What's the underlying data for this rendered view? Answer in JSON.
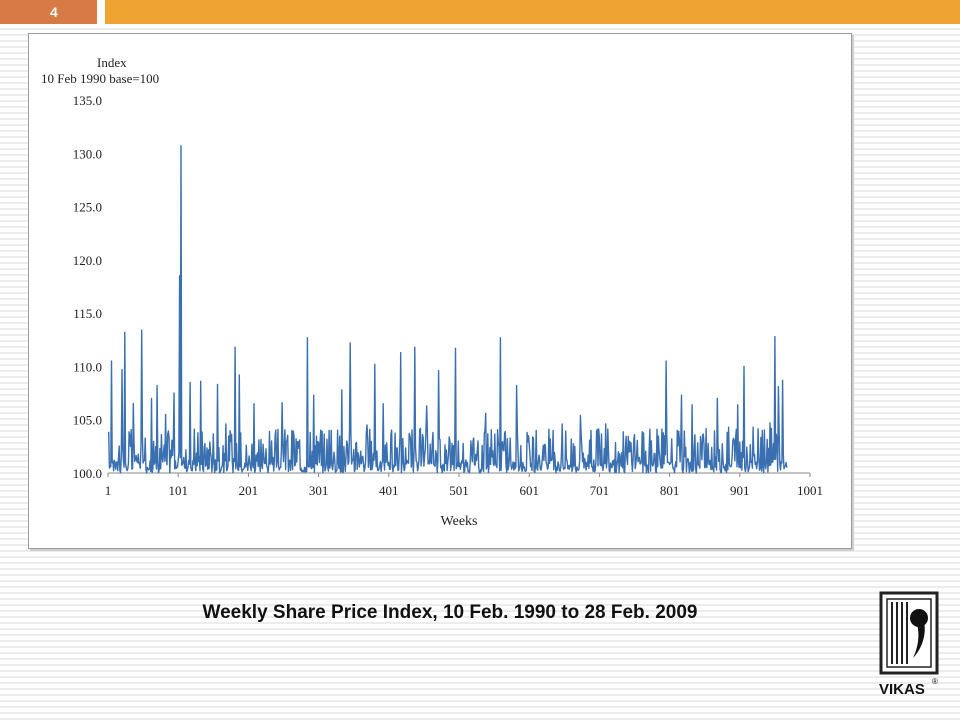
{
  "slide": {
    "number": "4"
  },
  "caption": "Weekly Share Price Index, 10 Feb. 1990 to 28 Feb. 2009",
  "logo": {
    "text": "VIKAS",
    "mark": "®",
    "icon": "vikas-book-logo-icon"
  },
  "colors": {
    "topbar_number": "#d77a46",
    "topbar": "#eea333",
    "series": "#3a6fb0"
  },
  "chart_data": {
    "type": "line",
    "title": "",
    "ylabel_line1": "Index",
    "ylabel_line2": "10 Feb 1990 base=100",
    "xlabel": "Weeks",
    "ylim": [
      100,
      135
    ],
    "xlim": [
      1,
      1001
    ],
    "y_ticks": [
      "135.0",
      "130.0",
      "125.0",
      "120.0",
      "115.0",
      "110.0",
      "105.0",
      "100.0"
    ],
    "x_ticks": [
      "1",
      "101",
      "201",
      "301",
      "401",
      "501",
      "601",
      "701",
      "801",
      "901",
      "1001"
    ],
    "grid": false,
    "legend": "none",
    "peaks": [
      {
        "x": 6,
        "y": 110.5
      },
      {
        "x": 21,
        "y": 109.7
      },
      {
        "x": 25,
        "y": 113.2
      },
      {
        "x": 37,
        "y": 106.5
      },
      {
        "x": 49,
        "y": 113.4
      },
      {
        "x": 63,
        "y": 107.0
      },
      {
        "x": 71,
        "y": 108.2
      },
      {
        "x": 83,
        "y": 105.5
      },
      {
        "x": 95,
        "y": 107.5
      },
      {
        "x": 103,
        "y": 118.5
      },
      {
        "x": 105,
        "y": 130.7
      },
      {
        "x": 118,
        "y": 108.5
      },
      {
        "x": 133,
        "y": 108.6
      },
      {
        "x": 157,
        "y": 108.3
      },
      {
        "x": 169,
        "y": 104.6
      },
      {
        "x": 182,
        "y": 111.8
      },
      {
        "x": 188,
        "y": 109.2
      },
      {
        "x": 209,
        "y": 106.5
      },
      {
        "x": 234,
        "y": 103.0
      },
      {
        "x": 249,
        "y": 106.6
      },
      {
        "x": 266,
        "y": 103.5
      },
      {
        "x": 285,
        "y": 112.7
      },
      {
        "x": 294,
        "y": 107.3
      },
      {
        "x": 316,
        "y": 104.0
      },
      {
        "x": 334,
        "y": 107.8
      },
      {
        "x": 346,
        "y": 112.2
      },
      {
        "x": 370,
        "y": 104.5
      },
      {
        "x": 381,
        "y": 110.2
      },
      {
        "x": 393,
        "y": 106.5
      },
      {
        "x": 418,
        "y": 111.3
      },
      {
        "x": 438,
        "y": 111.8
      },
      {
        "x": 455,
        "y": 106.3
      },
      {
        "x": 472,
        "y": 109.6
      },
      {
        "x": 496,
        "y": 111.7
      },
      {
        "x": 518,
        "y": 103.0
      },
      {
        "x": 539,
        "y": 105.6
      },
      {
        "x": 560,
        "y": 112.7
      },
      {
        "x": 583,
        "y": 108.2
      },
      {
        "x": 600,
        "y": 103.5
      },
      {
        "x": 621,
        "y": 102.6
      },
      {
        "x": 648,
        "y": 104.6
      },
      {
        "x": 674,
        "y": 105.4
      },
      {
        "x": 689,
        "y": 104.0
      },
      {
        "x": 710,
        "y": 104.6
      },
      {
        "x": 728,
        "y": 102.0
      },
      {
        "x": 751,
        "y": 103.6
      },
      {
        "x": 775,
        "y": 103.0
      },
      {
        "x": 796,
        "y": 110.5
      },
      {
        "x": 818,
        "y": 107.3
      },
      {
        "x": 833,
        "y": 106.4
      },
      {
        "x": 846,
        "y": 102.6
      },
      {
        "x": 869,
        "y": 107.0
      },
      {
        "x": 885,
        "y": 104.3
      },
      {
        "x": 898,
        "y": 106.4
      },
      {
        "x": 907,
        "y": 110.0
      },
      {
        "x": 920,
        "y": 104.3
      },
      {
        "x": 933,
        "y": 104.0
      },
      {
        "x": 944,
        "y": 104.7
      },
      {
        "x": 951,
        "y": 112.8
      },
      {
        "x": 956,
        "y": 108.1
      },
      {
        "x": 962,
        "y": 108.7
      },
      {
        "x": 968,
        "y": 100.5
      }
    ]
  }
}
